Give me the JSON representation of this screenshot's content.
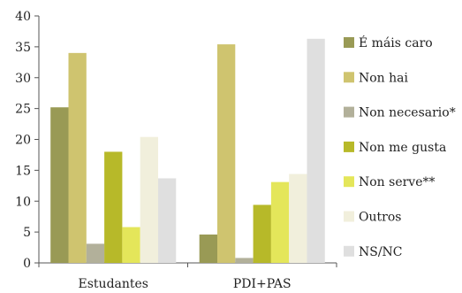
{
  "chart_data": {
    "type": "bar",
    "categories": [
      "Estudantes",
      "PDI+PAS"
    ],
    "series": [
      {
        "name": "É máis caro",
        "color": "#999a55",
        "values": [
          25.2,
          4.6
        ]
      },
      {
        "name": "Non hai",
        "color": "#cfc46f",
        "values": [
          34.0,
          35.4
        ]
      },
      {
        "name": "Non necesario*",
        "color": "#b2b09a",
        "values": [
          3.1,
          0.8
        ]
      },
      {
        "name": "Non me gusta",
        "color": "#b7b929",
        "values": [
          18.0,
          9.4
        ]
      },
      {
        "name": "Non serve**",
        "color": "#e4e65a",
        "values": [
          5.8,
          13.1
        ]
      },
      {
        "name": "Outros",
        "color": "#f1efdc",
        "values": [
          20.4,
          14.4
        ]
      },
      {
        "name": "NS/NC",
        "color": "#dfdfdf",
        "values": [
          13.7,
          36.3
        ]
      }
    ],
    "ylim": [
      0,
      40
    ],
    "yticks": [
      0,
      5,
      10,
      15,
      20,
      25,
      30,
      35,
      40
    ],
    "legend_position": "right",
    "grid": false,
    "title": "",
    "xlabel": "",
    "ylabel": ""
  }
}
